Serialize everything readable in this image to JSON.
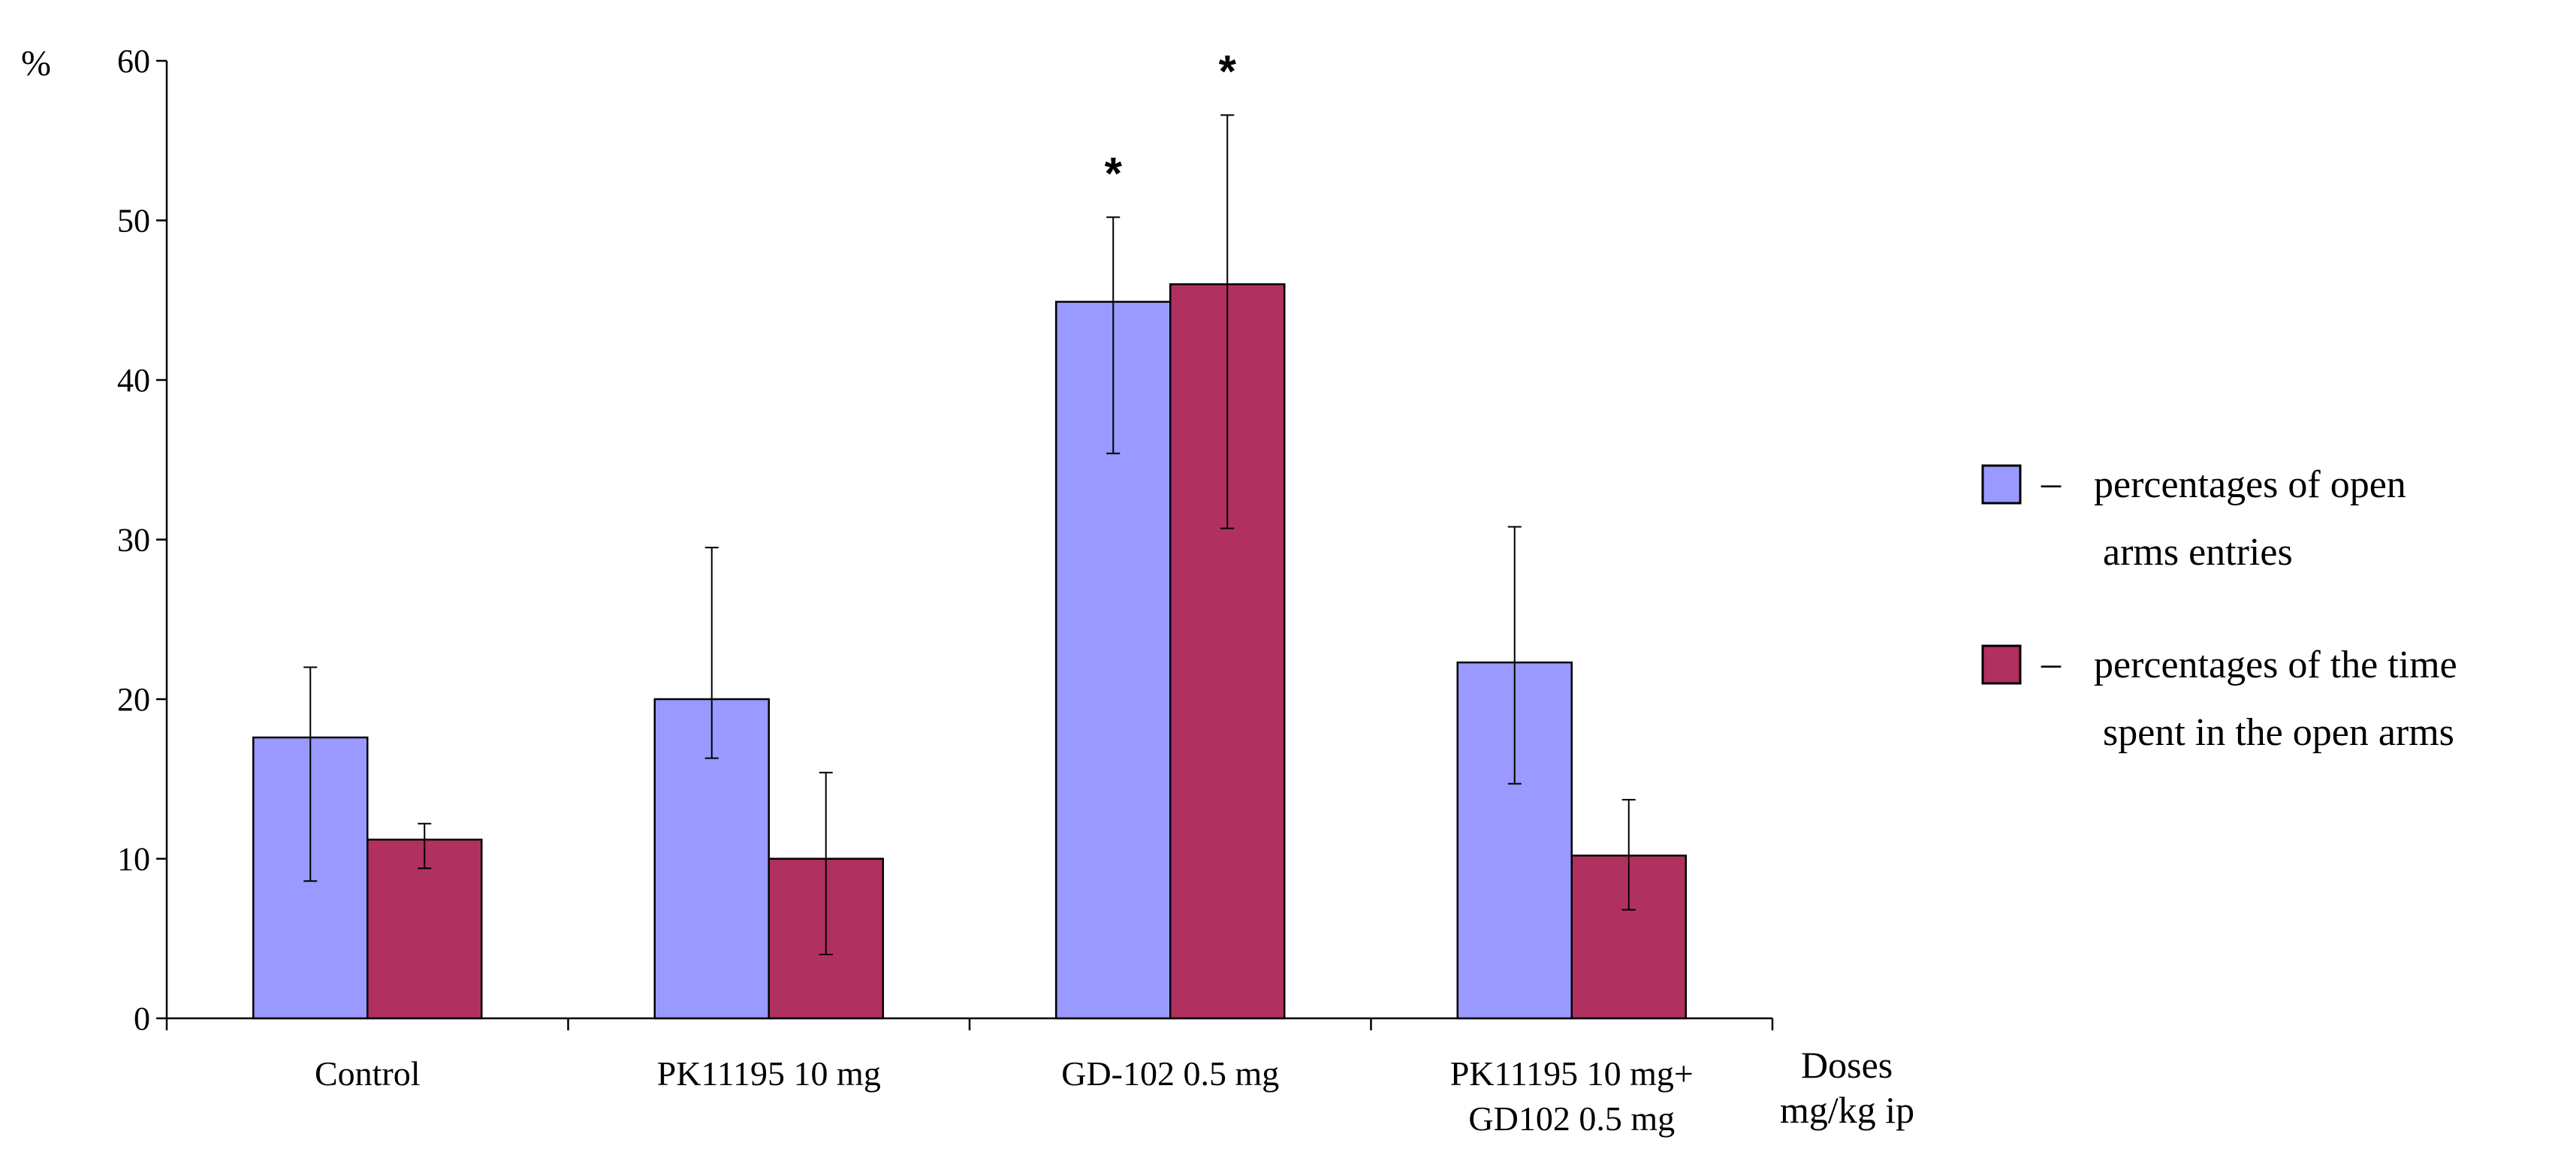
{
  "chart_data": {
    "type": "bar",
    "ylabel": "%",
    "xlabel": [
      "Doses",
      "mg/kg ip"
    ],
    "ylim": [
      0,
      60
    ],
    "yticks": [
      0,
      10,
      20,
      30,
      40,
      50,
      60
    ],
    "categories": [
      [
        "Control"
      ],
      [
        "PK11195 10 mg"
      ],
      [
        "GD-102 0.5 mg"
      ],
      [
        "PK11195 10 mg+",
        "GD102 0.5 mg"
      ]
    ],
    "series": [
      {
        "name": [
          "percentages of open",
          "arms entries"
        ],
        "color": "#9999ff",
        "values": [
          17.6,
          20.0,
          44.9,
          22.3
        ],
        "error_low": [
          8.6,
          16.3,
          35.4,
          14.7
        ],
        "error_high": [
          22.0,
          29.5,
          50.2,
          30.8
        ],
        "significance": [
          "",
          "",
          "*",
          ""
        ]
      },
      {
        "name": [
          "percentages of the time",
          "spent in the open arms"
        ],
        "color": "#b03060",
        "values": [
          11.2,
          10.0,
          46.0,
          10.2
        ],
        "error_low": [
          9.4,
          4.0,
          30.7,
          6.8
        ],
        "error_high": [
          12.2,
          15.4,
          56.6,
          13.7
        ],
        "significance": [
          "",
          "",
          "*",
          ""
        ]
      }
    ],
    "legend_position": "right",
    "legend_dash": "–",
    "grid": false
  }
}
